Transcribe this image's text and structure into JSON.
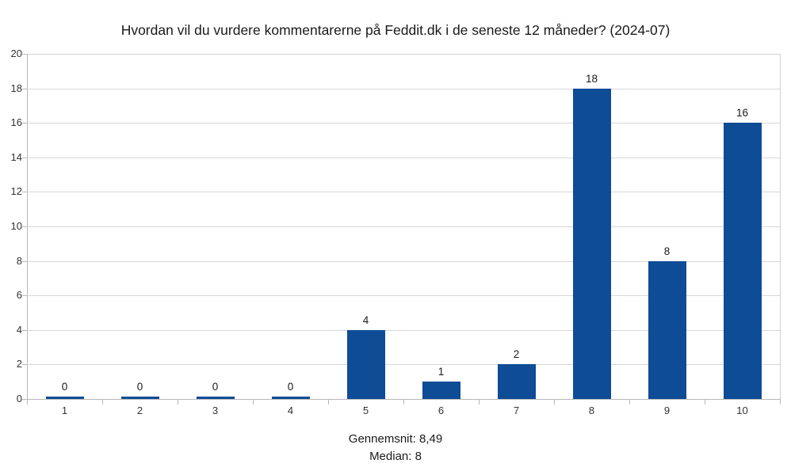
{
  "title": "Hvordan vil du vurdere kommentarerne på Feddit.dk i de seneste 12 måneder? (2024-07)",
  "footer": {
    "mean": "Gennemsnit: 8,49",
    "median": "Median: 8"
  },
  "colors": {
    "bar": "#0e4c96",
    "gridline": "#d7d7d7",
    "axis": "#b8b8b8",
    "plot_border": "#d0d0d0",
    "title_text": "#1a1a1a",
    "axis_text": "#333333"
  },
  "chart_data": {
    "type": "bar",
    "title": "Hvordan vil du vurdere kommentarerne på Feddit.dk i de seneste 12 måneder? (2024-07)",
    "categories": [
      "1",
      "2",
      "3",
      "4",
      "5",
      "6",
      "7",
      "8",
      "9",
      "10"
    ],
    "values": [
      0,
      0,
      0,
      0,
      4,
      1,
      2,
      18,
      8,
      16
    ],
    "xlabel": "",
    "ylabel": "",
    "ylim": [
      0,
      20
    ],
    "ytick_step": 2,
    "yticks": [
      0,
      2,
      4,
      6,
      8,
      10,
      12,
      14,
      16,
      18,
      20
    ],
    "grid": true,
    "legend": "none",
    "data_labels": true,
    "annotations": [
      "Gennemsnit: 8,49",
      "Median: 8"
    ]
  }
}
